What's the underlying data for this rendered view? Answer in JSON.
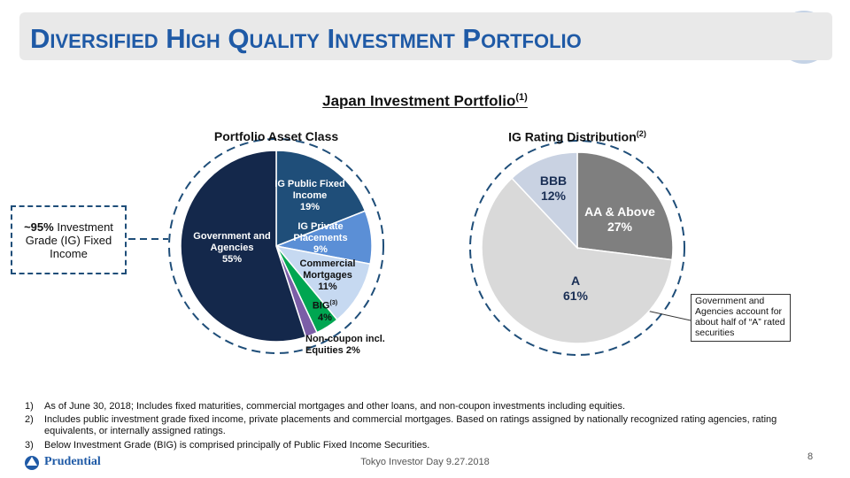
{
  "header": {
    "title": "Diversified High Quality Investment Portfolio"
  },
  "section": {
    "title": "Japan Investment Portfolio",
    "title_note": "(1)"
  },
  "callout_left": {
    "emphasis": "~95%",
    "text": "Investment Grade (IG) Fixed Income"
  },
  "callout_right": {
    "text": "Government and Agencies account for about half of “A” rated securities"
  },
  "chart_data": [
    {
      "type": "pie",
      "title": "Portfolio Asset Class",
      "categories": [
        "IG Public Fixed Income",
        "IG Private Placements",
        "Commercial Mortgages",
        "BIG",
        "Non-coupon incl. Equities",
        "Government and Agencies"
      ],
      "label_notes": [
        null,
        null,
        null,
        "(3)",
        null,
        null
      ],
      "values": [
        19,
        9,
        11,
        4,
        2,
        55
      ],
      "value_labels": [
        "19%",
        "9%",
        "11%",
        "4%",
        "2%",
        "55%"
      ],
      "colors": [
        "#1f4e79",
        "#5b8fd6",
        "#c6d9f1",
        "#00a651",
        "#7b5ea7",
        "#14284b"
      ]
    },
    {
      "type": "pie",
      "title": "IG Rating Distribution",
      "title_note": "(2)",
      "categories": [
        "AA & Above",
        "A",
        "BBB"
      ],
      "label_notes": [
        null,
        null,
        null
      ],
      "values": [
        27,
        61,
        12
      ],
      "value_labels": [
        "27%",
        "61%",
        "12%"
      ],
      "colors": [
        "#7f7f7f",
        "#d9d9d9",
        "#c9d2e2"
      ]
    }
  ],
  "footnotes": [
    {
      "marker": "1)",
      "text": "As of June 30, 2018; Includes fixed maturities, commercial mortgages and other loans, and non-coupon investments including equities."
    },
    {
      "marker": "2)",
      "text": "Includes public investment grade fixed income, private placements and commercial mortgages. Based on ratings assigned by nationally recognized rating agencies, rating equivalents, or internally assigned ratings."
    },
    {
      "marker": "3)",
      "text": "Below Investment Grade (BIG) is comprised principally of Public Fixed Income Securities."
    }
  ],
  "footer": {
    "logo": "Prudential",
    "event": "Tokyo Investor Day 9.27.2018",
    "page": "8"
  }
}
